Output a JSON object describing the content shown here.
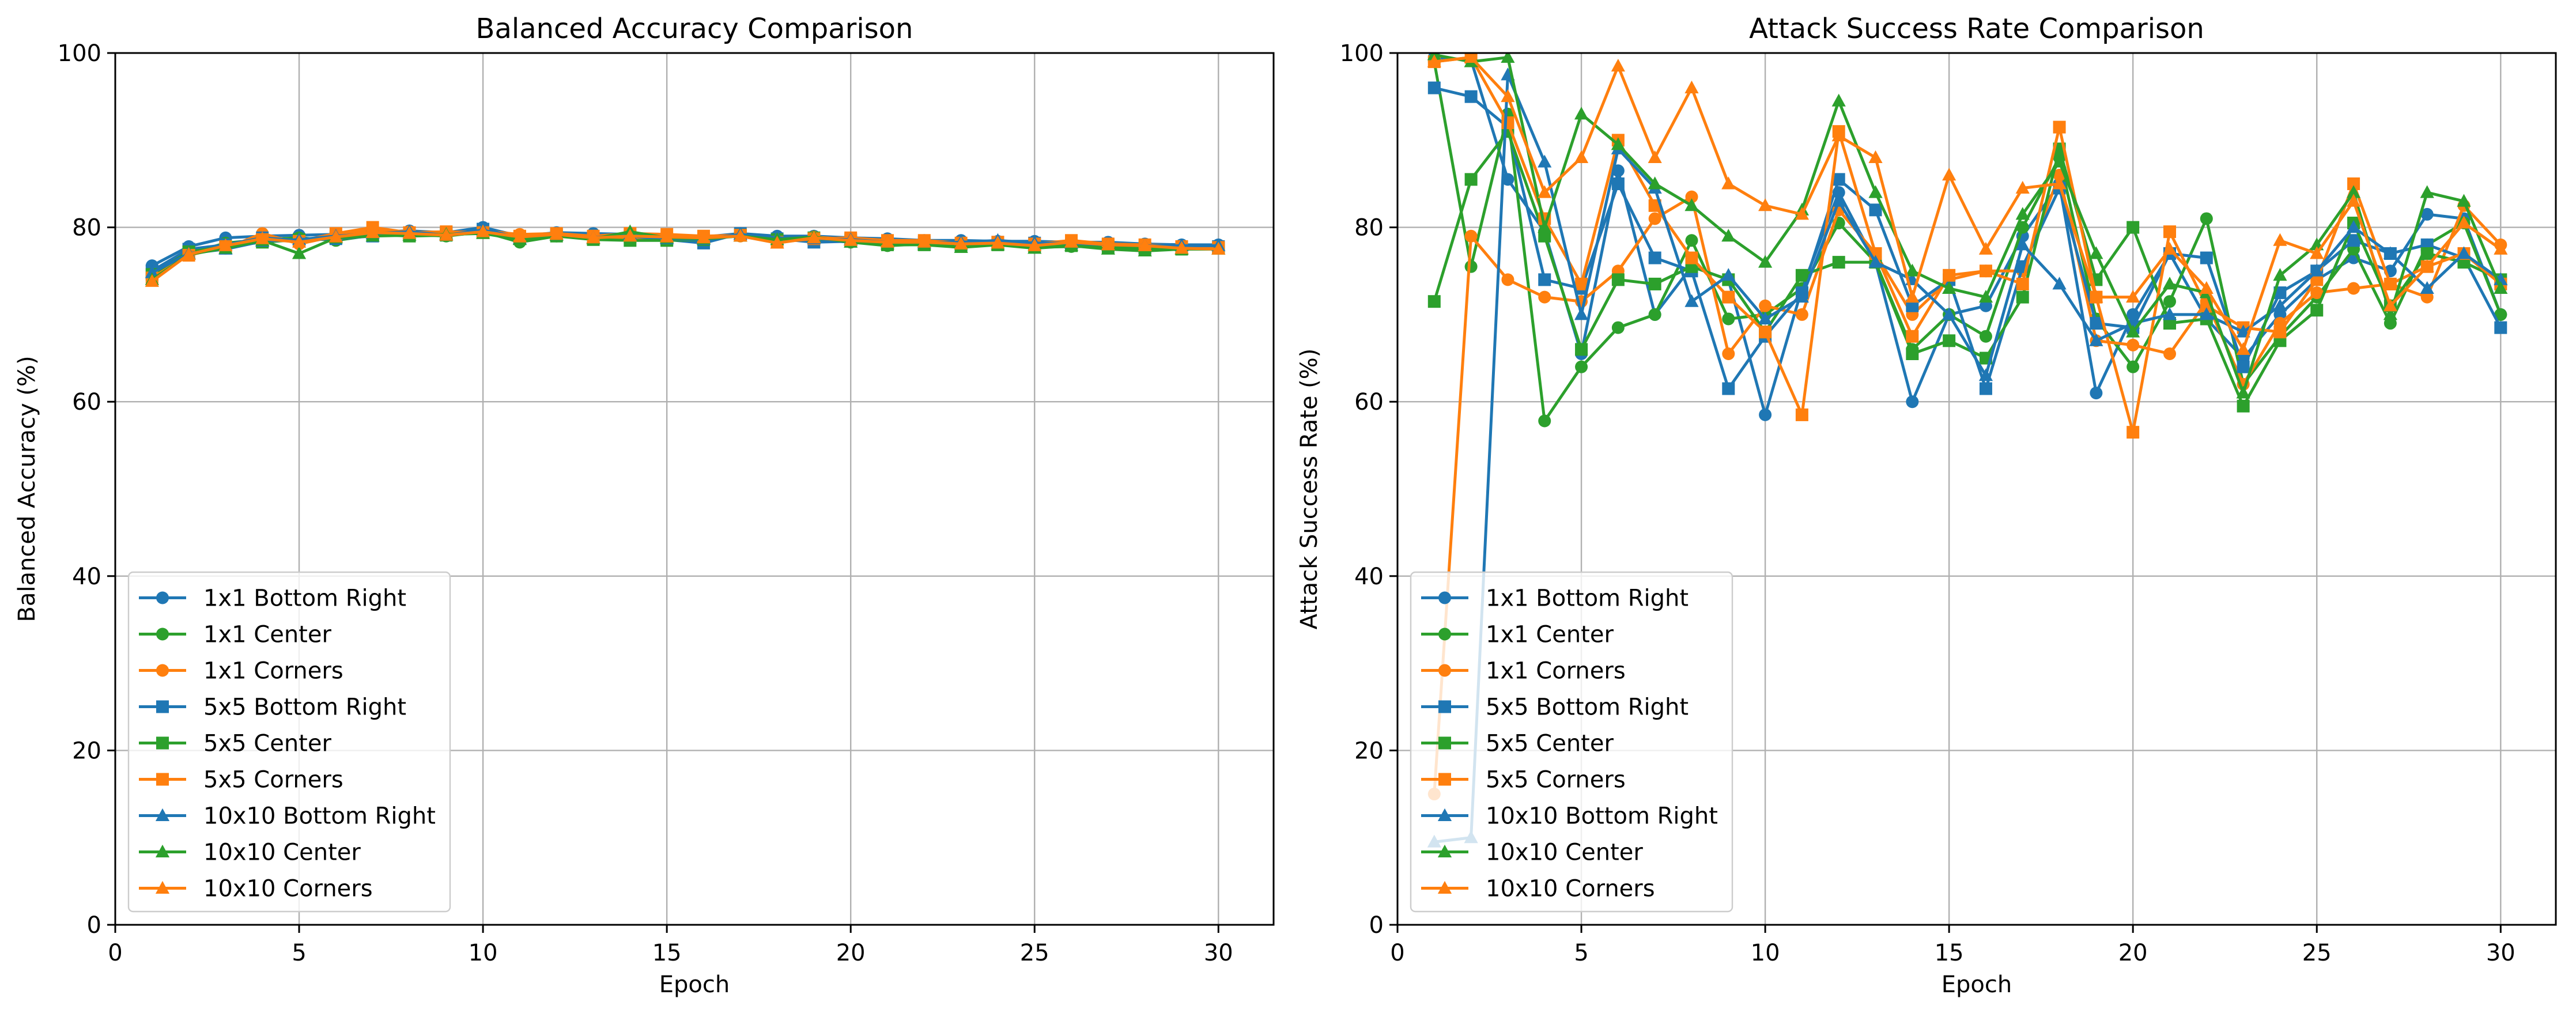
{
  "chart_data": [
    {
      "type": "line",
      "title": "Balanced Accuracy Comparison",
      "xlabel": "Epoch",
      "ylabel": "Balanced Accuracy (%)",
      "xlim": [
        0.0,
        31.5
      ],
      "ylim": [
        0,
        100
      ],
      "xticks": [
        0,
        5,
        10,
        15,
        20,
        25,
        30
      ],
      "yticks": [
        0,
        20,
        40,
        60,
        80,
        100
      ],
      "grid": true,
      "legend": "lower-left",
      "x": [
        1,
        2,
        3,
        4,
        5,
        6,
        7,
        8,
        9,
        10,
        11,
        12,
        13,
        14,
        15,
        16,
        17,
        18,
        19,
        20,
        21,
        22,
        23,
        24,
        25,
        26,
        27,
        28,
        29,
        30
      ],
      "series": [
        {
          "name": "1x1 Bottom Right",
          "color": "#1f77b4",
          "marker": "circle",
          "values": [
            75.6,
            77.8,
            78.8,
            79.0,
            79.1,
            79.2,
            79.5,
            79.6,
            79.4,
            80.0,
            79.0,
            79.4,
            79.3,
            79.2,
            79.0,
            78.9,
            79.3,
            79.0,
            79.0,
            78.8,
            78.7,
            78.5,
            78.5,
            78.4,
            78.4,
            78.3,
            78.3,
            78.1,
            78.0,
            78.0
          ]
        },
        {
          "name": "1x1 Center",
          "color": "#2ca02c",
          "marker": "circle",
          "values": [
            74.3,
            77.0,
            78.2,
            78.6,
            78.8,
            78.5,
            79.1,
            79.2,
            79.0,
            79.5,
            78.3,
            79.0,
            78.8,
            79.0,
            78.7,
            78.7,
            79.1,
            78.5,
            78.6,
            78.3,
            77.9,
            78.1,
            77.9,
            78.1,
            77.7,
            77.8,
            77.8,
            77.6,
            77.7,
            77.7
          ]
        },
        {
          "name": "1x1 Corners",
          "color": "#ff7f0e",
          "marker": "circle",
          "values": [
            74.1,
            77.2,
            77.6,
            79.3,
            78.1,
            79.0,
            79.7,
            79.5,
            79.2,
            79.6,
            79.2,
            79.3,
            78.9,
            78.8,
            78.8,
            78.9,
            79.0,
            78.4,
            78.9,
            78.6,
            78.2,
            78.4,
            78.1,
            78.2,
            78.0,
            78.1,
            77.9,
            77.8,
            77.8,
            77.6
          ]
        },
        {
          "name": "5x5 Bottom Right",
          "color": "#1f77b4",
          "marker": "square",
          "values": [
            75.0,
            77.5,
            78.0,
            78.8,
            78.5,
            78.7,
            79.0,
            79.3,
            79.4,
            79.8,
            78.8,
            79.2,
            78.9,
            79.0,
            78.6,
            78.2,
            79.3,
            78.7,
            78.3,
            78.4,
            78.4,
            78.3,
            78.0,
            78.3,
            78.2,
            78.0,
            78.0,
            77.6,
            77.7,
            77.8
          ]
        },
        {
          "name": "5x5 Center",
          "color": "#2ca02c",
          "marker": "square",
          "values": [
            74.6,
            77.2,
            77.8,
            78.3,
            78.6,
            78.9,
            79.2,
            79.0,
            79.1,
            79.4,
            78.9,
            79.0,
            78.6,
            78.5,
            78.5,
            78.6,
            79.1,
            78.6,
            78.8,
            78.6,
            78.0,
            78.0,
            77.8,
            78.0,
            77.8,
            77.9,
            77.7,
            77.6,
            77.5,
            77.6
          ]
        },
        {
          "name": "5x5 Corners",
          "color": "#ff7f0e",
          "marker": "square",
          "values": [
            74.2,
            76.8,
            77.8,
            78.6,
            78.4,
            79.3,
            80.0,
            79.4,
            79.5,
            79.4,
            79.0,
            79.3,
            79.0,
            79.3,
            79.2,
            79.0,
            79.1,
            78.3,
            78.7,
            78.8,
            78.5,
            78.5,
            78.2,
            78.3,
            78.1,
            78.5,
            78.1,
            78.0,
            77.8,
            77.7
          ]
        },
        {
          "name": "10x10 Bottom Right",
          "color": "#1f77b4",
          "marker": "triangle",
          "values": [
            74.8,
            77.0,
            77.5,
            78.4,
            78.6,
            79.0,
            79.3,
            79.5,
            79.1,
            79.7,
            78.7,
            79.1,
            78.8,
            79.2,
            78.7,
            78.6,
            79.2,
            78.8,
            78.7,
            78.6,
            78.3,
            78.2,
            78.3,
            78.5,
            78.2,
            78.2,
            78.0,
            77.9,
            77.9,
            77.9
          ]
        },
        {
          "name": "10x10 Center",
          "color": "#2ca02c",
          "marker": "triangle",
          "values": [
            74.0,
            76.9,
            77.6,
            78.5,
            77.0,
            78.8,
            79.0,
            79.1,
            79.2,
            79.3,
            78.6,
            79.1,
            78.7,
            79.5,
            78.8,
            78.7,
            79.0,
            78.6,
            78.9,
            78.3,
            78.1,
            78.0,
            77.7,
            78.0,
            77.6,
            77.9,
            77.5,
            77.3,
            77.5,
            77.5
          ]
        },
        {
          "name": "10x10 Corners",
          "color": "#ff7f0e",
          "marker": "triangle",
          "values": [
            73.8,
            76.9,
            77.9,
            78.7,
            78.3,
            78.9,
            79.4,
            79.3,
            79.1,
            79.5,
            78.9,
            79.2,
            78.8,
            79.0,
            78.9,
            78.8,
            79.0,
            78.2,
            78.8,
            78.5,
            78.3,
            78.3,
            78.1,
            78.2,
            77.9,
            78.3,
            78.0,
            77.9,
            77.6,
            77.5
          ]
        }
      ]
    },
    {
      "type": "line",
      "title": "Attack Success Rate Comparison",
      "xlabel": "Epoch",
      "ylabel": "Attack Success Rate (%)",
      "xlim": [
        0.0,
        31.5
      ],
      "ylim": [
        0,
        100
      ],
      "xticks": [
        0,
        5,
        10,
        15,
        20,
        25,
        30
      ],
      "yticks": [
        0,
        20,
        40,
        60,
        80,
        100
      ],
      "grid": true,
      "legend": "lower-left",
      "x": [
        1,
        2,
        3,
        4,
        5,
        6,
        7,
        8,
        9,
        10,
        11,
        12,
        13,
        14,
        15,
        16,
        17,
        18,
        19,
        20,
        21,
        22,
        23,
        24,
        25,
        26,
        27,
        28,
        29,
        30
      ],
      "series": [
        {
          "name": "1x1 Bottom Right",
          "color": "#1f77b4",
          "marker": "circle",
          "values": [
            99.5,
            99.2,
            85.5,
            79.5,
            65.5,
            86.5,
            70.0,
            75.5,
            74.0,
            58.5,
            73.0,
            84.0,
            76.0,
            60.0,
            70.0,
            71.0,
            79.0,
            85.0,
            61.0,
            70.0,
            77.0,
            69.5,
            65.0,
            70.0,
            74.0,
            76.5,
            75.0,
            81.5,
            81.0,
            70.0
          ]
        },
        {
          "name": "1x1 Center",
          "color": "#2ca02c",
          "marker": "circle",
          "values": [
            99.0,
            75.5,
            93.0,
            57.8,
            64.0,
            68.5,
            70.0,
            78.5,
            69.5,
            70.0,
            73.0,
            80.5,
            76.0,
            66.0,
            70.0,
            67.5,
            80.0,
            88.0,
            69.5,
            64.0,
            71.5,
            81.0,
            62.0,
            67.5,
            72.0,
            77.5,
            69.0,
            78.0,
            80.5,
            70.0
          ]
        },
        {
          "name": "1x1 Corners",
          "color": "#ff7f0e",
          "marker": "circle",
          "values": [
            15.0,
            79.0,
            74.0,
            72.0,
            71.5,
            75.0,
            81.0,
            83.5,
            65.5,
            71.0,
            70.0,
            82.0,
            77.0,
            70.0,
            74.0,
            75.0,
            75.0,
            86.0,
            67.0,
            66.5,
            65.5,
            71.5,
            62.0,
            69.0,
            72.5,
            73.0,
            73.5,
            72.0,
            82.5,
            78.0
          ]
        },
        {
          "name": "5x5 Bottom Right",
          "color": "#1f77b4",
          "marker": "square",
          "values": [
            96.0,
            95.0,
            91.5,
            74.0,
            73.0,
            85.0,
            76.5,
            75.0,
            61.5,
            67.5,
            72.5,
            85.5,
            82.0,
            71.0,
            74.0,
            61.5,
            75.5,
            84.5,
            69.0,
            68.5,
            77.0,
            76.5,
            64.0,
            72.5,
            75.0,
            78.5,
            77.0,
            78.0,
            76.5,
            68.5
          ]
        },
        {
          "name": "5x5 Center",
          "color": "#2ca02c",
          "marker": "square",
          "values": [
            71.5,
            85.5,
            91.0,
            79.0,
            66.0,
            74.0,
            73.5,
            75.5,
            74.0,
            68.0,
            74.5,
            76.0,
            76.0,
            65.5,
            67.0,
            65.0,
            72.0,
            89.0,
            74.0,
            80.0,
            69.0,
            69.5,
            59.5,
            67.0,
            70.5,
            80.5,
            71.0,
            77.0,
            76.0,
            74.0
          ]
        },
        {
          "name": "5x5 Corners",
          "color": "#ff7f0e",
          "marker": "square",
          "values": [
            99.0,
            99.5,
            92.0,
            81.0,
            73.5,
            90.0,
            82.5,
            76.5,
            72.0,
            68.0,
            58.5,
            91.0,
            77.0,
            67.5,
            74.5,
            75.0,
            73.5,
            91.5,
            72.0,
            56.5,
            79.5,
            71.0,
            68.5,
            68.0,
            74.0,
            85.0,
            73.5,
            75.5,
            77.0,
            73.5
          ]
        },
        {
          "name": "10x10 Bottom Right",
          "color": "#1f77b4",
          "marker": "triangle",
          "values": [
            9.5,
            10.0,
            97.5,
            87.5,
            70.0,
            89.0,
            84.5,
            71.5,
            74.5,
            69.5,
            72.0,
            83.0,
            76.0,
            74.0,
            70.0,
            63.0,
            78.0,
            73.5,
            67.0,
            69.0,
            70.0,
            70.0,
            68.0,
            71.0,
            75.0,
            80.0,
            77.0,
            73.0,
            77.0,
            74.0
          ]
        },
        {
          "name": "10x10 Center",
          "color": "#2ca02c",
          "marker": "triangle",
          "values": [
            99.8,
            99.0,
            99.5,
            80.0,
            93.0,
            89.5,
            85.0,
            82.5,
            79.0,
            76.0,
            82.0,
            94.5,
            84.0,
            75.0,
            73.0,
            72.0,
            81.5,
            87.5,
            77.0,
            68.0,
            73.5,
            72.5,
            61.0,
            74.5,
            78.0,
            84.0,
            70.0,
            84.0,
            83.0,
            73.0
          ]
        },
        {
          "name": "10x10 Corners",
          "color": "#ff7f0e",
          "marker": "triangle",
          "values": [
            99.0,
            99.5,
            95.0,
            84.0,
            88.0,
            98.5,
            88.0,
            96.0,
            85.0,
            82.5,
            81.5,
            90.5,
            88.0,
            72.0,
            86.0,
            77.5,
            84.5,
            85.0,
            72.0,
            72.0,
            77.5,
            73.0,
            66.0,
            78.5,
            77.0,
            83.0,
            71.0,
            75.5,
            80.5,
            77.5
          ]
        }
      ]
    }
  ]
}
